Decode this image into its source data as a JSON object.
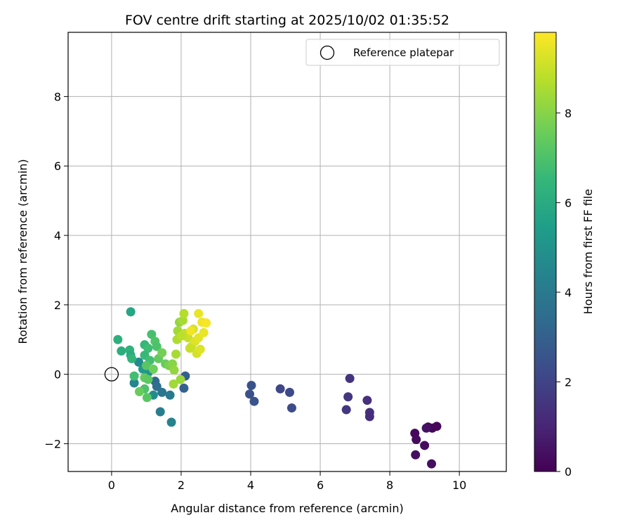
{
  "chart_data": {
    "type": "scatter",
    "title": "FOV centre drift starting at 2025/10/02 01:35:52",
    "xlabel": "Angular distance from reference (arcmin)",
    "ylabel": "Rotation from reference (arcmin)",
    "xlim": [
      -1.25,
      11.35
    ],
    "ylim": [
      -2.8,
      9.85
    ],
    "xticks": [
      "0",
      "2",
      "4",
      "6",
      "8",
      "10"
    ],
    "yticks": [
      "−2",
      "0",
      "2",
      "4",
      "6",
      "8"
    ],
    "grid": true,
    "legend": {
      "placement": "top-right",
      "entries": [
        "Reference platepar"
      ]
    },
    "reference_point": {
      "x": 0,
      "y": 0
    },
    "colorbar": {
      "label": "Hours from first FF file",
      "range": [
        0,
        9.8
      ],
      "ticks": [
        "0",
        "2",
        "4",
        "6",
        "8"
      ],
      "colormap": [
        "#440154",
        "#482878",
        "#3e4989",
        "#31688e",
        "#26828e",
        "#1f9e89",
        "#35b779",
        "#6ece58",
        "#b5de2b",
        "#fde725"
      ]
    },
    "points": [
      {
        "x": 9.1,
        "y": -1.52,
        "h": 0.05
      },
      {
        "x": 9.22,
        "y": -1.55,
        "h": 0.1
      },
      {
        "x": 9.35,
        "y": -1.5,
        "h": 0.15
      },
      {
        "x": 8.72,
        "y": -1.7,
        "h": 0.2
      },
      {
        "x": 8.76,
        "y": -1.88,
        "h": 0.25
      },
      {
        "x": 9.0,
        "y": -2.05,
        "h": 0.3
      },
      {
        "x": 8.74,
        "y": -2.32,
        "h": 0.35
      },
      {
        "x": 9.2,
        "y": -2.58,
        "h": 0.4
      },
      {
        "x": 9.05,
        "y": -1.55,
        "h": 0.45
      },
      {
        "x": 6.85,
        "y": -0.12,
        "h": 1.5
      },
      {
        "x": 6.8,
        "y": -0.65,
        "h": 1.55
      },
      {
        "x": 6.75,
        "y": -1.02,
        "h": 1.6
      },
      {
        "x": 7.35,
        "y": -0.75,
        "h": 1.4
      },
      {
        "x": 7.42,
        "y": -1.1,
        "h": 1.35
      },
      {
        "x": 7.42,
        "y": -1.22,
        "h": 1.3
      },
      {
        "x": 4.85,
        "y": -0.42,
        "h": 2.1
      },
      {
        "x": 5.12,
        "y": -0.52,
        "h": 2.2
      },
      {
        "x": 5.18,
        "y": -0.97,
        "h": 2.3
      },
      {
        "x": 4.02,
        "y": -0.32,
        "h": 2.5
      },
      {
        "x": 3.97,
        "y": -0.57,
        "h": 2.45
      },
      {
        "x": 4.1,
        "y": -0.78,
        "h": 2.55
      },
      {
        "x": 2.12,
        "y": -0.05,
        "h": 3.0
      },
      {
        "x": 2.08,
        "y": -0.4,
        "h": 3.1
      },
      {
        "x": 1.25,
        "y": -0.2,
        "h": 3.3
      },
      {
        "x": 1.3,
        "y": -0.35,
        "h": 3.5
      },
      {
        "x": 1.45,
        "y": -0.52,
        "h": 3.8
      },
      {
        "x": 1.68,
        "y": -0.6,
        "h": 4.0
      },
      {
        "x": 1.4,
        "y": -1.08,
        "h": 4.2
      },
      {
        "x": 1.72,
        "y": -1.38,
        "h": 4.4
      },
      {
        "x": 0.65,
        "y": -0.25,
        "h": 4.5
      },
      {
        "x": 0.78,
        "y": 0.35,
        "h": 4.7
      },
      {
        "x": 1.2,
        "y": -0.6,
        "h": 4.8
      },
      {
        "x": 1.05,
        "y": 0.05,
        "h": 5.0
      },
      {
        "x": 0.9,
        "y": 0.15,
        "h": 5.2
      },
      {
        "x": 0.55,
        "y": 1.8,
        "h": 5.8
      },
      {
        "x": 0.18,
        "y": 1.0,
        "h": 6.2
      },
      {
        "x": 0.28,
        "y": 0.67,
        "h": 6.1
      },
      {
        "x": 0.52,
        "y": 0.7,
        "h": 6.3
      },
      {
        "x": 0.55,
        "y": 0.55,
        "h": 6.0
      },
      {
        "x": 0.58,
        "y": 0.45,
        "h": 6.4
      },
      {
        "x": 0.65,
        "y": -0.05,
        "h": 6.8
      },
      {
        "x": 0.95,
        "y": 0.85,
        "h": 6.5
      },
      {
        "x": 1.05,
        "y": 0.75,
        "h": 6.7
      },
      {
        "x": 1.15,
        "y": 1.15,
        "h": 6.9
      },
      {
        "x": 1.25,
        "y": 0.95,
        "h": 7.1
      },
      {
        "x": 1.3,
        "y": 0.8,
        "h": 7.0
      },
      {
        "x": 0.95,
        "y": 0.55,
        "h": 6.6
      },
      {
        "x": 1.1,
        "y": 0.4,
        "h": 6.8
      },
      {
        "x": 1.0,
        "y": 0.25,
        "h": 7.2
      },
      {
        "x": 0.95,
        "y": -0.1,
        "h": 7.4
      },
      {
        "x": 1.05,
        "y": -0.15,
        "h": 7.3
      },
      {
        "x": 0.95,
        "y": -0.42,
        "h": 7.0
      },
      {
        "x": 0.8,
        "y": -0.5,
        "h": 7.5
      },
      {
        "x": 1.02,
        "y": -0.67,
        "h": 7.2
      },
      {
        "x": 1.2,
        "y": 0.15,
        "h": 7.6
      },
      {
        "x": 1.35,
        "y": 0.45,
        "h": 7.4
      },
      {
        "x": 1.45,
        "y": 0.62,
        "h": 7.7
      },
      {
        "x": 1.55,
        "y": 0.3,
        "h": 7.5
      },
      {
        "x": 1.65,
        "y": 0.25,
        "h": 7.8
      },
      {
        "x": 1.75,
        "y": 0.3,
        "h": 8.0
      },
      {
        "x": 1.8,
        "y": 0.12,
        "h": 8.2
      },
      {
        "x": 1.78,
        "y": -0.28,
        "h": 8.4
      },
      {
        "x": 1.98,
        "y": -0.15,
        "h": 8.3
      },
      {
        "x": 1.85,
        "y": 0.58,
        "h": 8.5
      },
      {
        "x": 1.88,
        "y": 1.0,
        "h": 8.6
      },
      {
        "x": 1.9,
        "y": 1.25,
        "h": 8.4
      },
      {
        "x": 1.95,
        "y": 1.5,
        "h": 8.2
      },
      {
        "x": 2.05,
        "y": 1.55,
        "h": 8.5
      },
      {
        "x": 2.08,
        "y": 1.75,
        "h": 8.7
      },
      {
        "x": 2.1,
        "y": 1.18,
        "h": 8.9
      },
      {
        "x": 2.2,
        "y": 1.05,
        "h": 9.0
      },
      {
        "x": 2.3,
        "y": 0.8,
        "h": 9.1
      },
      {
        "x": 2.35,
        "y": 1.3,
        "h": 9.2
      },
      {
        "x": 2.4,
        "y": 0.95,
        "h": 9.3
      },
      {
        "x": 2.45,
        "y": 0.6,
        "h": 9.2
      },
      {
        "x": 2.5,
        "y": 1.05,
        "h": 9.4
      },
      {
        "x": 2.5,
        "y": 1.75,
        "h": 9.5
      },
      {
        "x": 2.55,
        "y": 0.72,
        "h": 9.3
      },
      {
        "x": 2.6,
        "y": 1.5,
        "h": 9.6
      },
      {
        "x": 2.65,
        "y": 1.2,
        "h": 9.5
      },
      {
        "x": 2.72,
        "y": 1.48,
        "h": 9.7
      },
      {
        "x": 2.28,
        "y": 1.25,
        "h": 9.6
      },
      {
        "x": 2.25,
        "y": 0.75,
        "h": 9.0
      },
      {
        "x": 2.0,
        "y": 1.1,
        "h": 8.8
      }
    ]
  }
}
